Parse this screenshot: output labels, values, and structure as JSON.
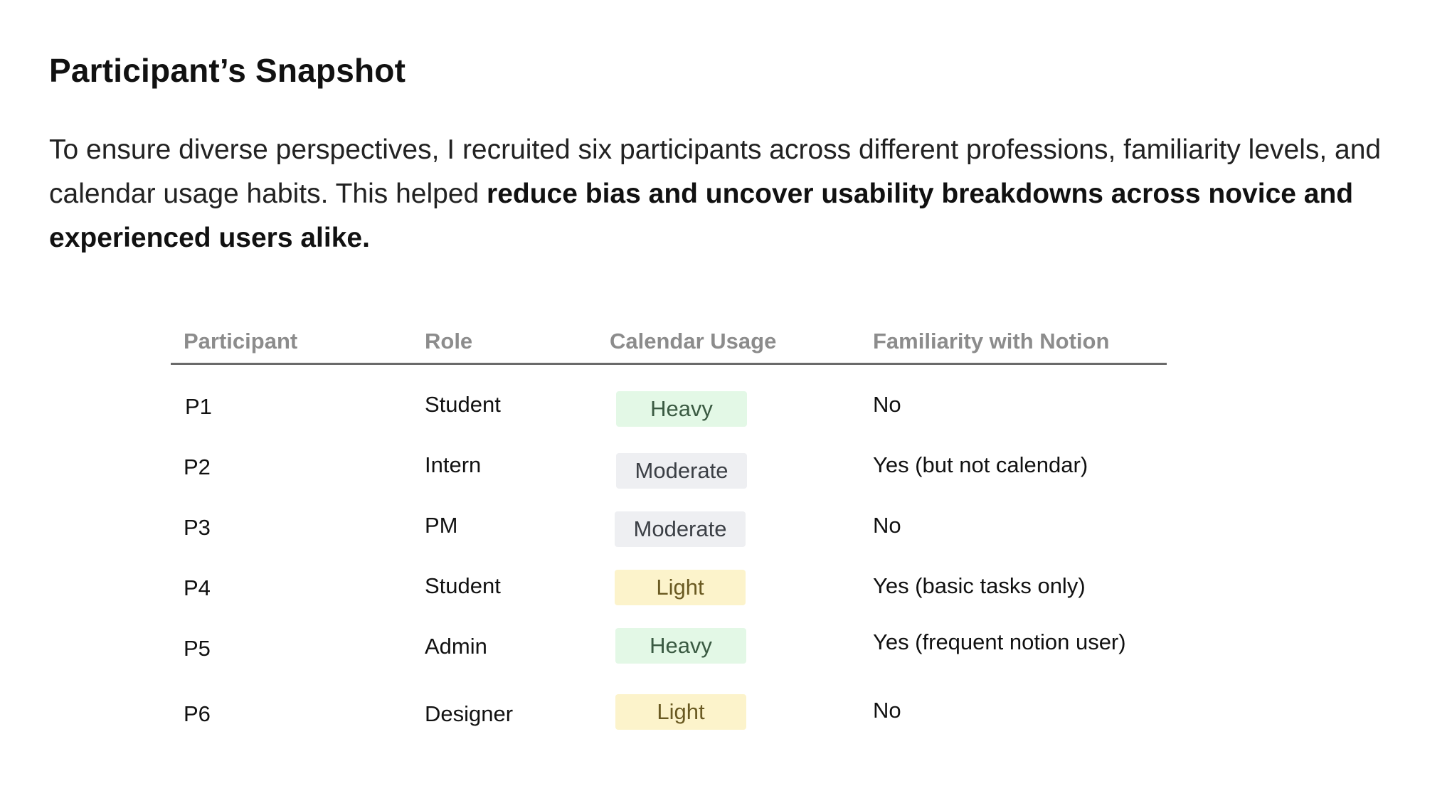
{
  "title": "Participant’s Snapshot",
  "intro": {
    "regular": "To ensure diverse perspectives, I recruited six participants across different professions, familiarity levels, and calendar usage habits. This helped ",
    "bold": "reduce bias and uncover usability breakdowns across novice and experienced users alike."
  },
  "table": {
    "headers": [
      "Participant",
      "Role",
      "Calendar Usage",
      "Familiarity with Notion"
    ],
    "rows": [
      {
        "participant": "P1",
        "role": "Student",
        "usage": "Heavy",
        "familiarity": "No"
      },
      {
        "participant": "P2",
        "role": "Intern",
        "usage": "Moderate",
        "familiarity": "Yes (but not calendar)"
      },
      {
        "participant": "P3",
        "role": "PM",
        "usage": "Moderate",
        "familiarity": "No"
      },
      {
        "participant": "P4",
        "role": "Student",
        "usage": "Light",
        "familiarity": "Yes (basic tasks only)"
      },
      {
        "participant": "P5",
        "role": "Admin",
        "usage": "Heavy",
        "familiarity": "Yes (frequent notion user)"
      },
      {
        "participant": "P6",
        "role": "Designer",
        "usage": "Light",
        "familiarity": "No"
      }
    ]
  },
  "usage_colors": {
    "Heavy": {
      "bg": "#e3f8e6",
      "text": "#3a5a42"
    },
    "Moderate": {
      "bg": "#eeeff2",
      "text": "#3b3f45"
    },
    "Light": {
      "bg": "#fcf3cb",
      "text": "#6a5a22"
    }
  }
}
